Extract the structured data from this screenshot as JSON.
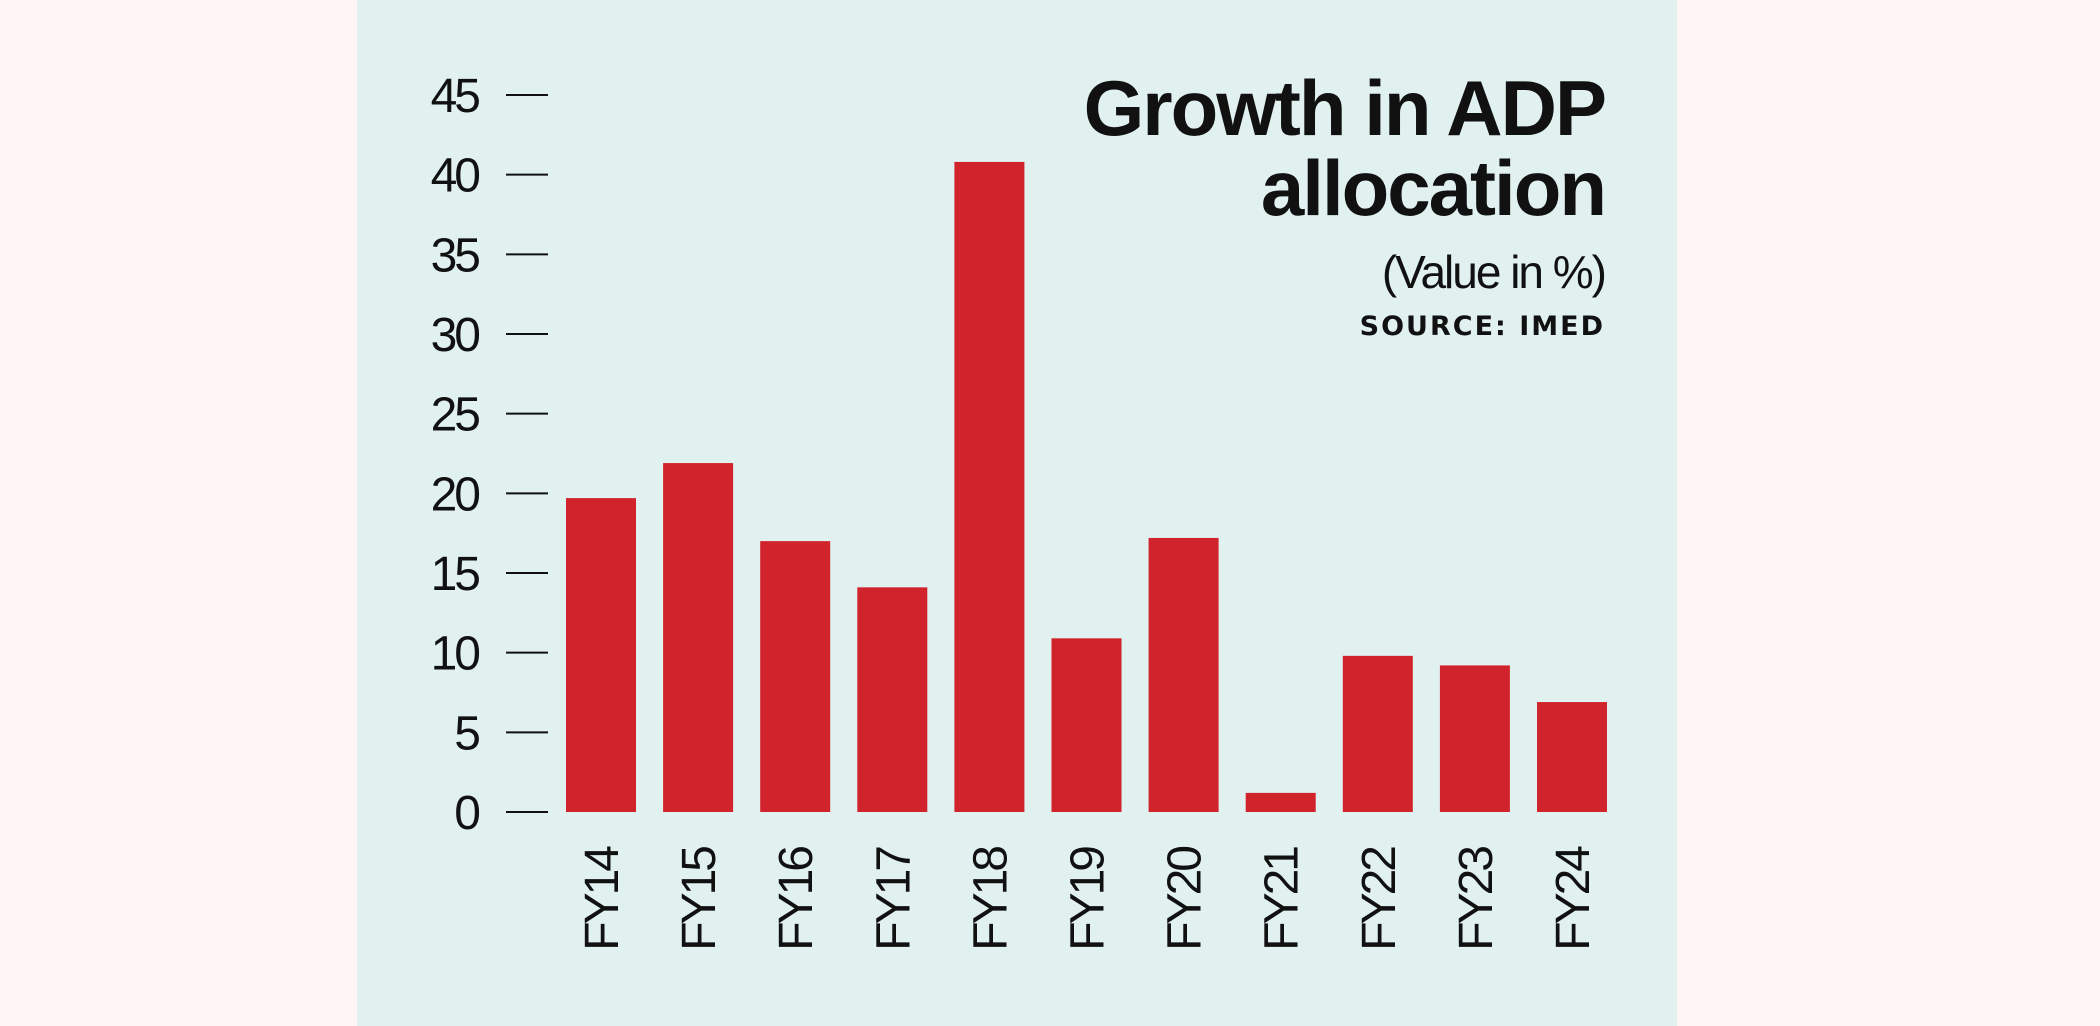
{
  "colors": {
    "page_background": "#fdf6f5",
    "panel_background": "#e1f1f0",
    "bar": "#d1232b",
    "text": "#111111"
  },
  "chart_data": {
    "type": "bar",
    "title_lines": [
      "Growth in ADP",
      "allocation"
    ],
    "title": "Growth in ADP allocation",
    "subtitle": "(Value in %)",
    "source": "SOURCE: IMED",
    "categories": [
      "FY14",
      "FY15",
      "FY16",
      "FY17",
      "FY18",
      "FY19",
      "FY20",
      "FY21",
      "FY22",
      "FY23",
      "FY24"
    ],
    "values": [
      19.7,
      21.9,
      17.0,
      14.1,
      40.8,
      10.9,
      17.2,
      1.2,
      9.8,
      9.2,
      6.9
    ],
    "ylim": [
      0,
      45
    ],
    "yticks": [
      0,
      5,
      10,
      15,
      20,
      25,
      30,
      35,
      40,
      45
    ],
    "xlabel": "",
    "ylabel": "",
    "grid": false,
    "legend": "none",
    "x_tick_orientation": "vertical"
  }
}
